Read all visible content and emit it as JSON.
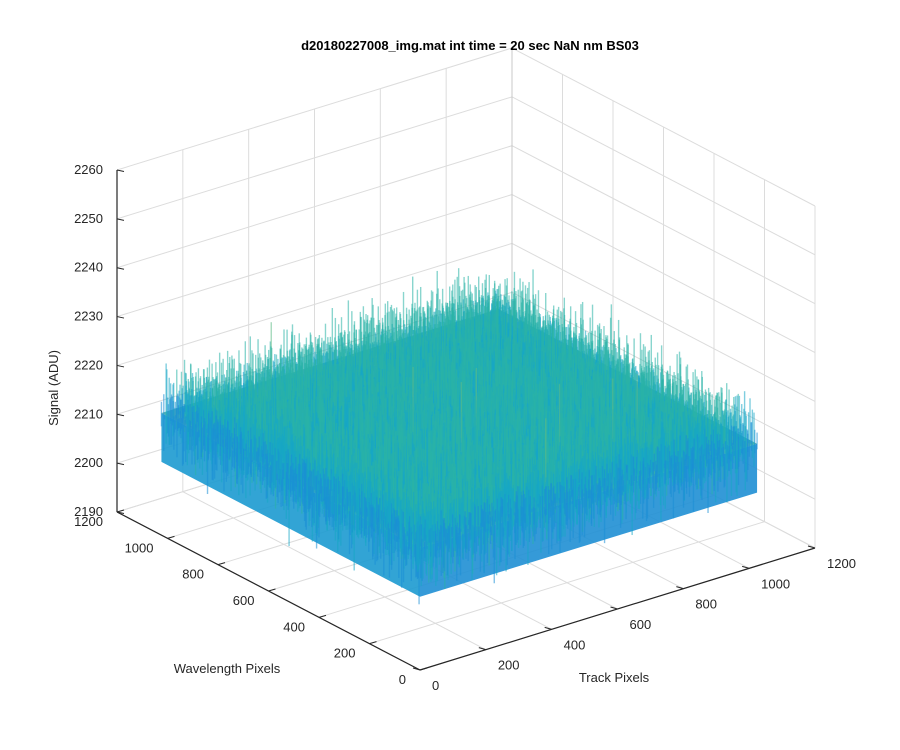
{
  "chart_data": {
    "type": "surface",
    "title": "d20180227008_img.mat int time = 20 sec  NaN nm BS03",
    "xlabel": "Track Pixels",
    "ylabel": "Wavelength Pixels",
    "zlabel": "Signal (ADU)",
    "xlim": [
      0,
      1200
    ],
    "ylim": [
      0,
      1200
    ],
    "zlim": [
      2190,
      2260
    ],
    "x_ticks": [
      "0",
      "200",
      "400",
      "600",
      "800",
      "1000",
      "1200"
    ],
    "y_ticks": [
      "0",
      "200",
      "400",
      "600",
      "800",
      "1000",
      "1200"
    ],
    "z_ticks": [
      "2190",
      "2200",
      "2210",
      "2220",
      "2230",
      "2240",
      "2250",
      "2260"
    ],
    "grid": true,
    "surface": {
      "x_extent": [
        0,
        1024
      ],
      "y_extent": [
        0,
        1024
      ],
      "mean": 2215,
      "noise_range": [
        2195,
        2245
      ],
      "colormap": "parula",
      "colors": [
        "#0d6fcf",
        "#1a8fd6",
        "#17a7c6",
        "#2ab3a7",
        "#5fbb86",
        "#9bbd5f"
      ]
    }
  }
}
